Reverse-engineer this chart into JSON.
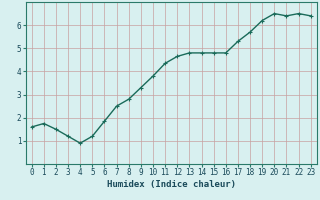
{
  "x": [
    0,
    1,
    2,
    3,
    4,
    5,
    6,
    7,
    8,
    9,
    10,
    11,
    12,
    13,
    14,
    15,
    16,
    17,
    18,
    19,
    20,
    21,
    22,
    23
  ],
  "y": [
    1.6,
    1.75,
    1.5,
    1.2,
    0.9,
    1.2,
    1.85,
    2.5,
    2.8,
    3.3,
    3.8,
    4.35,
    4.65,
    4.8,
    4.8,
    4.8,
    4.8,
    5.3,
    5.7,
    6.2,
    6.5,
    6.4,
    6.5,
    6.4
  ],
  "line_color": "#1a6b5a",
  "marker": "+",
  "marker_size": 3,
  "bg_color": "#d8f0f0",
  "grid_color": "#c8a0a0",
  "xlabel": "Humidex (Indice chaleur)",
  "xlim": [
    -0.5,
    23.5
  ],
  "ylim": [
    0,
    7
  ],
  "yticks": [
    1,
    2,
    3,
    4,
    5,
    6
  ],
  "xticks": [
    0,
    1,
    2,
    3,
    4,
    5,
    6,
    7,
    8,
    9,
    10,
    11,
    12,
    13,
    14,
    15,
    16,
    17,
    18,
    19,
    20,
    21,
    22,
    23
  ],
  "line_width": 1.0,
  "spine_color": "#2a7a6a",
  "font_color": "#1a4a5a",
  "label_fontsize": 6.5,
  "tick_fontsize": 5.5
}
